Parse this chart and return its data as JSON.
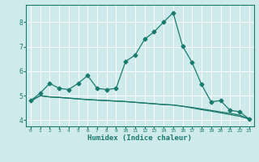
{
  "xlabel": "Humidex (Indice chaleur)",
  "bg_color": "#ceeaea",
  "grid_color": "#ffffff",
  "line_color": "#1a7a6e",
  "xlim": [
    -0.5,
    23.5
  ],
  "ylim": [
    3.75,
    8.7
  ],
  "xticks": [
    0,
    1,
    2,
    3,
    4,
    5,
    6,
    7,
    8,
    9,
    10,
    11,
    12,
    13,
    14,
    15,
    16,
    17,
    18,
    19,
    20,
    21,
    22,
    23
  ],
  "yticks": [
    4,
    5,
    6,
    7,
    8
  ],
  "line1_x": [
    0,
    1,
    2,
    3,
    4,
    5,
    6,
    7,
    8,
    9,
    10,
    11,
    12,
    13,
    14,
    15,
    16,
    17,
    18,
    19,
    20,
    21,
    22,
    23
  ],
  "line1_y": [
    4.8,
    5.1,
    5.5,
    5.3,
    5.25,
    5.5,
    5.82,
    5.3,
    5.25,
    5.3,
    6.4,
    6.65,
    7.3,
    7.6,
    8.0,
    8.38,
    7.02,
    6.35,
    5.45,
    4.75,
    4.8,
    4.4,
    4.35,
    4.05
  ],
  "line2_x": [
    0,
    1,
    2,
    3,
    4,
    5,
    6,
    7,
    8,
    9,
    10,
    11,
    12,
    13,
    14,
    15,
    16,
    17,
    18,
    19,
    20,
    21,
    22,
    23
  ],
  "line2_y": [
    4.78,
    5.0,
    4.95,
    4.93,
    4.9,
    4.87,
    4.84,
    4.82,
    4.8,
    4.78,
    4.76,
    4.73,
    4.7,
    4.67,
    4.64,
    4.62,
    4.57,
    4.52,
    4.46,
    4.4,
    4.34,
    4.28,
    4.21,
    4.05
  ],
  "line3_x": [
    0,
    1,
    2,
    3,
    4,
    5,
    6,
    7,
    8,
    9,
    10,
    11,
    12,
    13,
    14,
    15,
    16,
    17,
    18,
    19,
    20,
    21,
    22,
    23
  ],
  "line3_y": [
    4.78,
    5.0,
    4.95,
    4.93,
    4.9,
    4.87,
    4.84,
    4.82,
    4.8,
    4.78,
    4.76,
    4.73,
    4.7,
    4.67,
    4.64,
    4.62,
    4.57,
    4.5,
    4.43,
    4.37,
    4.3,
    4.23,
    4.16,
    4.05
  ],
  "marker": "D",
  "markersize": 2.5,
  "linewidth": 0.9
}
